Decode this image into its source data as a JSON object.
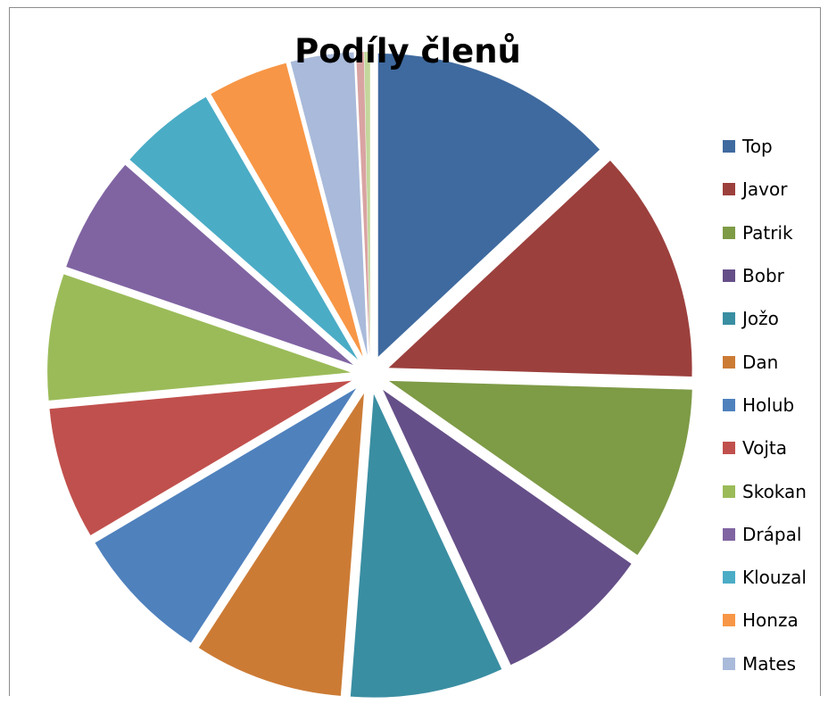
{
  "chart_data": {
    "type": "pie",
    "title": "Podíly členů",
    "exploded": true,
    "legend_position": "right",
    "slices": [
      {
        "label": "Top",
        "value": 12.8,
        "color": "#3F6A9F"
      },
      {
        "label": "Javor",
        "value": 12.2,
        "color": "#9C403D"
      },
      {
        "label": "Patrik",
        "value": 9.1,
        "color": "#7E9B46"
      },
      {
        "label": "Bobr",
        "value": 8.2,
        "color": "#654F88"
      },
      {
        "label": "Jožo",
        "value": 8.0,
        "color": "#3A8EA2"
      },
      {
        "label": "Dan",
        "value": 7.8,
        "color": "#CC7B35"
      },
      {
        "label": "Holub",
        "value": 7.2,
        "color": "#4F81BD"
      },
      {
        "label": "Vojta",
        "value": 6.9,
        "color": "#C0504D"
      },
      {
        "label": "Skokan",
        "value": 6.6,
        "color": "#9BBB59"
      },
      {
        "label": "Drápal",
        "value": 6.1,
        "color": "#8064A2"
      },
      {
        "label": "Klouzal",
        "value": 5.1,
        "color": "#4BACC6"
      },
      {
        "label": "Honza",
        "value": 4.2,
        "color": "#F79646"
      },
      {
        "label": "Mates",
        "value": 3.3,
        "color": "#A9BADA"
      },
      {
        "label": "",
        "value": 0.4,
        "color": "#D9A3A2"
      },
      {
        "label": "",
        "value": 0.3,
        "color": "#C3D69B"
      }
    ]
  }
}
